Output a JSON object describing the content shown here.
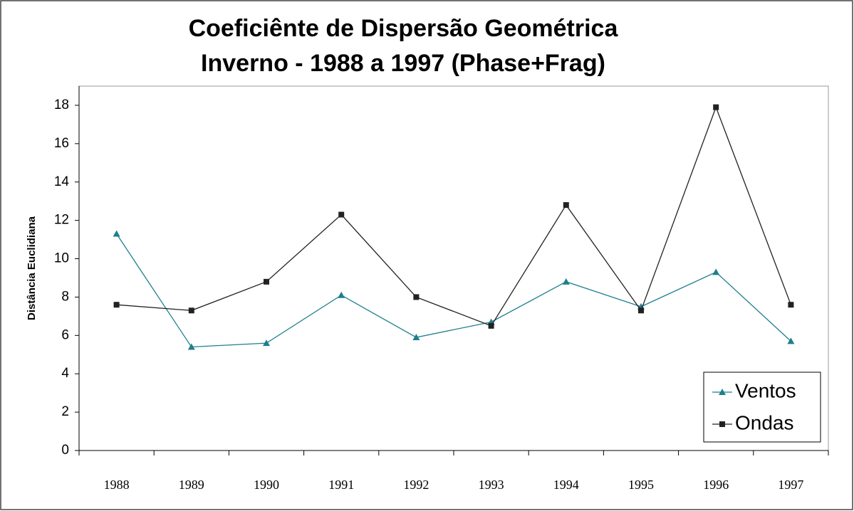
{
  "chart_data": {
    "type": "line",
    "title": "Coeficiênte de Dispersão Geométrica",
    "subtitle": "Inverno - 1988 a 1997 (Phase+Frag)",
    "y_label": "Distância Euclidiana",
    "categories": [
      "1988",
      "1989",
      "1990",
      "1991",
      "1992",
      "1993",
      "1994",
      "1995",
      "1996",
      "1997"
    ],
    "series": [
      {
        "name": "Ventos",
        "color": "#1f7f8c",
        "marker": "triangle",
        "values": [
          11.3,
          5.4,
          5.6,
          8.1,
          5.9,
          6.7,
          8.8,
          7.5,
          9.3,
          5.7
        ]
      },
      {
        "name": "Ondas",
        "color": "#222222",
        "marker": "square",
        "values": [
          7.6,
          7.3,
          8.8,
          12.3,
          8.0,
          6.5,
          12.8,
          7.3,
          17.9,
          7.6
        ]
      }
    ],
    "ylim": [
      0,
      19
    ],
    "yticks": [
      0,
      2,
      4,
      6,
      8,
      10,
      12,
      14,
      16,
      18
    ],
    "legend": "lower right"
  }
}
